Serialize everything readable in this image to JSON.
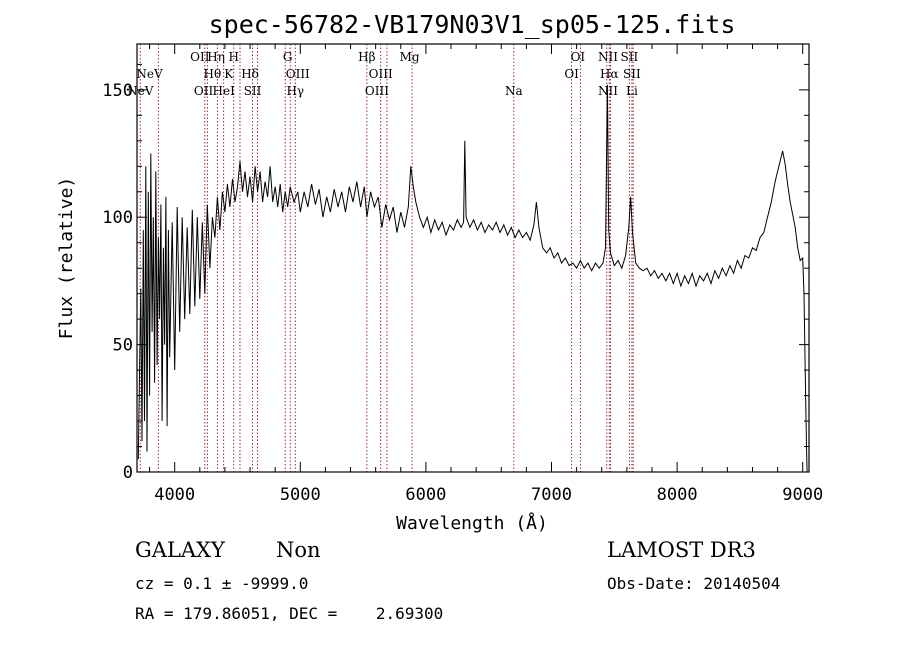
{
  "chart_data": {
    "type": "line",
    "title": "spec-56782-VB179N03V1_sp05-125.fits",
    "xlabel": "Wavelength (Å)",
    "ylabel": "Flux (relative)",
    "xlim": [
      3700,
      9050
    ],
    "ylim": [
      0,
      168
    ],
    "xticks": [
      4000,
      5000,
      6000,
      7000,
      8000,
      9000
    ],
    "yticks": [
      0,
      50,
      100,
      150
    ],
    "grid": false,
    "line_color": "#000000",
    "marker_color": "#8b1a1a",
    "spectral_lines": [
      {
        "name": "NeV",
        "wl": 3726,
        "row": 3
      },
      {
        "name": "NeV",
        "wl": 3800,
        "row": 2
      },
      {
        "name": "OII",
        "wl": 4200,
        "row": 1
      },
      {
        "name": "OII",
        "wl": 4230,
        "row": 3
      },
      {
        "name": "Hη",
        "wl": 4330,
        "row": 1
      },
      {
        "name": "Hθ",
        "wl": 4300,
        "row": 2
      },
      {
        "name": "HeI",
        "wl": 4390,
        "row": 3
      },
      {
        "name": "H",
        "wl": 4470,
        "row": 1
      },
      {
        "name": "K",
        "wl": 4430,
        "row": 2
      },
      {
        "name": "Hδ",
        "wl": 4600,
        "row": 2
      },
      {
        "name": "SII",
        "wl": 4620,
        "row": 3
      },
      {
        "name": "G",
        "wl": 4900,
        "row": 1
      },
      {
        "name": "OIII",
        "wl": 4980,
        "row": 2
      },
      {
        "name": "Hγ",
        "wl": 4960,
        "row": 3
      },
      {
        "name": "Hβ",
        "wl": 5530,
        "row": 1
      },
      {
        "name": "OIII",
        "wl": 5640,
        "row": 2
      },
      {
        "name": "OIII",
        "wl": 5610,
        "row": 3
      },
      {
        "name": "Mg",
        "wl": 5870,
        "row": 1
      },
      {
        "name": "Na",
        "wl": 6700,
        "row": 3
      },
      {
        "name": "OI",
        "wl": 7210,
        "row": 1
      },
      {
        "name": "OI",
        "wl": 7160,
        "row": 2
      },
      {
        "name": "NII",
        "wl": 7450,
        "row": 1
      },
      {
        "name": "Hα",
        "wl": 7460,
        "row": 2
      },
      {
        "name": "NII",
        "wl": 7450,
        "row": 3
      },
      {
        "name": "SII",
        "wl": 7620,
        "row": 1
      },
      {
        "name": "SII",
        "wl": 7640,
        "row": 2
      },
      {
        "name": "Li",
        "wl": 7640,
        "row": 3
      }
    ],
    "marker_lines_wl": [
      3726,
      3870,
      4240,
      4260,
      4340,
      4390,
      4470,
      4520,
      4620,
      4660,
      4880,
      4920,
      4960,
      5530,
      5640,
      5690,
      5890,
      6700,
      7160,
      7230,
      7440,
      7460,
      7470,
      7620,
      7640,
      7650
    ],
    "series": [
      {
        "points": [
          [
            3710,
            5
          ],
          [
            3720,
            38
          ],
          [
            3730,
            72
          ],
          [
            3740,
            12
          ],
          [
            3750,
            95
          ],
          [
            3760,
            20
          ],
          [
            3770,
            120
          ],
          [
            3780,
            8
          ],
          [
            3790,
            110
          ],
          [
            3800,
            30
          ],
          [
            3810,
            125
          ],
          [
            3820,
            55
          ],
          [
            3830,
            100
          ],
          [
            3840,
            35
          ],
          [
            3850,
            118
          ],
          [
            3860,
            42
          ],
          [
            3870,
            92
          ],
          [
            3880,
            60
          ],
          [
            3890,
            105
          ],
          [
            3900,
            20
          ],
          [
            3910,
            88
          ],
          [
            3920,
            50
          ],
          [
            3930,
            108
          ],
          [
            3940,
            18
          ],
          [
            3950,
            95
          ],
          [
            3960,
            45
          ],
          [
            3980,
            98
          ],
          [
            4000,
            40
          ],
          [
            4020,
            104
          ],
          [
            4040,
            55
          ],
          [
            4060,
            100
          ],
          [
            4080,
            60
          ],
          [
            4100,
            96
          ],
          [
            4120,
            62
          ],
          [
            4140,
            103
          ],
          [
            4160,
            65
          ],
          [
            4180,
            100
          ],
          [
            4200,
            68
          ],
          [
            4220,
            98
          ],
          [
            4240,
            70
          ],
          [
            4260,
            105
          ],
          [
            4280,
            80
          ],
          [
            4300,
            100
          ],
          [
            4320,
            92
          ],
          [
            4340,
            108
          ],
          [
            4360,
            95
          ],
          [
            4380,
            110
          ],
          [
            4400,
            102
          ],
          [
            4420,
            113
          ],
          [
            4440,
            104
          ],
          [
            4460,
            115
          ],
          [
            4480,
            106
          ],
          [
            4500,
            112
          ],
          [
            4520,
            122
          ],
          [
            4540,
            110
          ],
          [
            4560,
            118
          ],
          [
            4580,
            108
          ],
          [
            4600,
            116
          ],
          [
            4620,
            106
          ],
          [
            4640,
            120
          ],
          [
            4660,
            110
          ],
          [
            4680,
            118
          ],
          [
            4700,
            106
          ],
          [
            4720,
            114
          ],
          [
            4740,
            108
          ],
          [
            4760,
            120
          ],
          [
            4780,
            106
          ],
          [
            4800,
            112
          ],
          [
            4820,
            104
          ],
          [
            4840,
            113
          ],
          [
            4860,
            102
          ],
          [
            4880,
            110
          ],
          [
            4900,
            104
          ],
          [
            4920,
            112
          ],
          [
            4950,
            106
          ],
          [
            4980,
            110
          ],
          [
            5000,
            102
          ],
          [
            5030,
            110
          ],
          [
            5060,
            104
          ],
          [
            5090,
            113
          ],
          [
            5120,
            105
          ],
          [
            5150,
            111
          ],
          [
            5180,
            100
          ],
          [
            5210,
            108
          ],
          [
            5240,
            102
          ],
          [
            5270,
            111
          ],
          [
            5300,
            104
          ],
          [
            5330,
            110
          ],
          [
            5360,
            102
          ],
          [
            5390,
            112
          ],
          [
            5420,
            106
          ],
          [
            5450,
            114
          ],
          [
            5480,
            104
          ],
          [
            5510,
            112
          ],
          [
            5530,
            100
          ],
          [
            5560,
            110
          ],
          [
            5590,
            104
          ],
          [
            5620,
            108
          ],
          [
            5650,
            96
          ],
          [
            5680,
            105
          ],
          [
            5710,
            99
          ],
          [
            5740,
            104
          ],
          [
            5770,
            94
          ],
          [
            5800,
            102
          ],
          [
            5830,
            96
          ],
          [
            5860,
            104
          ],
          [
            5880,
            120
          ],
          [
            5900,
            112
          ],
          [
            5920,
            106
          ],
          [
            5950,
            100
          ],
          [
            5980,
            96
          ],
          [
            6010,
            100
          ],
          [
            6040,
            94
          ],
          [
            6070,
            99
          ],
          [
            6100,
            95
          ],
          [
            6130,
            98
          ],
          [
            6160,
            93
          ],
          [
            6190,
            97
          ],
          [
            6220,
            95
          ],
          [
            6250,
            99
          ],
          [
            6280,
            96
          ],
          [
            6300,
            98
          ],
          [
            6310,
            130
          ],
          [
            6320,
            100
          ],
          [
            6350,
            96
          ],
          [
            6380,
            99
          ],
          [
            6410,
            95
          ],
          [
            6440,
            98
          ],
          [
            6470,
            94
          ],
          [
            6500,
            97
          ],
          [
            6530,
            95
          ],
          [
            6560,
            98
          ],
          [
            6590,
            94
          ],
          [
            6620,
            97
          ],
          [
            6650,
            93
          ],
          [
            6680,
            96
          ],
          [
            6710,
            92
          ],
          [
            6740,
            95
          ],
          [
            6770,
            92
          ],
          [
            6800,
            94
          ],
          [
            6830,
            91
          ],
          [
            6860,
            97
          ],
          [
            6880,
            106
          ],
          [
            6900,
            96
          ],
          [
            6930,
            88
          ],
          [
            6960,
            86
          ],
          [
            6990,
            88
          ],
          [
            7020,
            84
          ],
          [
            7050,
            86
          ],
          [
            7080,
            82
          ],
          [
            7110,
            84
          ],
          [
            7140,
            81
          ],
          [
            7170,
            82
          ],
          [
            7200,
            80
          ],
          [
            7230,
            83
          ],
          [
            7260,
            80
          ],
          [
            7290,
            82
          ],
          [
            7320,
            79
          ],
          [
            7350,
            82
          ],
          [
            7380,
            80
          ],
          [
            7410,
            82
          ],
          [
            7430,
            88
          ],
          [
            7445,
            152
          ],
          [
            7455,
            95
          ],
          [
            7470,
            86
          ],
          [
            7500,
            81
          ],
          [
            7530,
            83
          ],
          [
            7560,
            80
          ],
          [
            7590,
            85
          ],
          [
            7615,
            96
          ],
          [
            7630,
            108
          ],
          [
            7645,
            94
          ],
          [
            7670,
            82
          ],
          [
            7700,
            80
          ],
          [
            7730,
            79
          ],
          [
            7760,
            80
          ],
          [
            7790,
            77
          ],
          [
            7820,
            79
          ],
          [
            7850,
            76
          ],
          [
            7880,
            78
          ],
          [
            7910,
            75
          ],
          [
            7940,
            78
          ],
          [
            7970,
            74
          ],
          [
            8000,
            78
          ],
          [
            8030,
            73
          ],
          [
            8060,
            77
          ],
          [
            8090,
            74
          ],
          [
            8120,
            78
          ],
          [
            8150,
            73
          ],
          [
            8180,
            77
          ],
          [
            8210,
            75
          ],
          [
            8240,
            78
          ],
          [
            8270,
            74
          ],
          [
            8300,
            79
          ],
          [
            8330,
            76
          ],
          [
            8360,
            80
          ],
          [
            8390,
            77
          ],
          [
            8420,
            81
          ],
          [
            8450,
            78
          ],
          [
            8480,
            83
          ],
          [
            8510,
            80
          ],
          [
            8540,
            85
          ],
          [
            8570,
            84
          ],
          [
            8600,
            88
          ],
          [
            8630,
            87
          ],
          [
            8660,
            92
          ],
          [
            8690,
            94
          ],
          [
            8720,
            100
          ],
          [
            8750,
            106
          ],
          [
            8780,
            114
          ],
          [
            8810,
            120
          ],
          [
            8840,
            126
          ],
          [
            8860,
            121
          ],
          [
            8880,
            113
          ],
          [
            8900,
            106
          ],
          [
            8920,
            101
          ],
          [
            8940,
            96
          ],
          [
            8960,
            88
          ],
          [
            8980,
            83
          ],
          [
            9000,
            84
          ],
          [
            9010,
            70
          ],
          [
            9020,
            40
          ],
          [
            9030,
            10
          ],
          [
            9035,
            0
          ]
        ]
      }
    ]
  },
  "info": {
    "class": "GALAXY",
    "subclass": "Non",
    "survey": "LAMOST DR3",
    "cz_line": "cz = 0.1 ± -9999.0",
    "obs_date": "Obs-Date: 20140504",
    "coords_line": "RA = 179.86051, DEC =    2.69300"
  }
}
